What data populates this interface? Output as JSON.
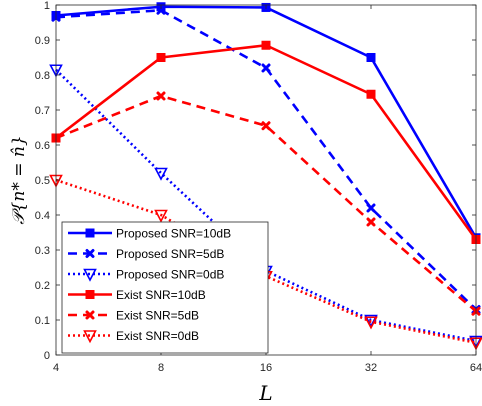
{
  "chart_data": {
    "type": "line",
    "x": [
      4,
      8,
      16,
      32,
      64
    ],
    "x_tick_labels": [
      "4",
      "8",
      "16",
      "32",
      "64"
    ],
    "x_scale": "log2",
    "xlabel": "L",
    "ylabel": "𝒫{n* = n̂}",
    "ylim": [
      0,
      1
    ],
    "y_ticks": [
      0,
      0.1,
      0.2,
      0.3,
      0.4,
      0.5,
      0.6,
      0.7,
      0.8,
      0.9,
      1
    ],
    "y_tick_labels": [
      "0",
      "0.1",
      "0.2",
      "0.3",
      "0.4",
      "0.5",
      "0.6",
      "0.7",
      "0.8",
      "0.9",
      "1"
    ],
    "grid": false,
    "legend_position": "bottom-left",
    "series": [
      {
        "name": "Proposed SNR=10dB",
        "values": [
          0.97,
          0.995,
          0.993,
          0.85,
          0.335
        ],
        "color": "#0000ff",
        "line": "solid",
        "marker": "square"
      },
      {
        "name": "Proposed SNR=5dB",
        "values": [
          0.965,
          0.985,
          0.82,
          0.42,
          0.13
        ],
        "color": "#0000ff",
        "line": "dashed",
        "marker": "x"
      },
      {
        "name": "Proposed SNR=0dB",
        "values": [
          0.815,
          0.52,
          0.24,
          0.1,
          0.04
        ],
        "color": "#0000ff",
        "line": "dotted",
        "marker": "triangle-down"
      },
      {
        "name": "Exist SNR=10dB",
        "values": [
          0.62,
          0.85,
          0.885,
          0.745,
          0.33
        ],
        "color": "#ff0000",
        "line": "solid",
        "marker": "square"
      },
      {
        "name": "Exist SNR=5dB",
        "values": [
          0.62,
          0.74,
          0.655,
          0.38,
          0.125
        ],
        "color": "#ff0000",
        "line": "dashed",
        "marker": "x"
      },
      {
        "name": "Exist SNR=0dB",
        "values": [
          0.5,
          0.4,
          0.225,
          0.095,
          0.035
        ],
        "color": "#ff0000",
        "line": "dotted",
        "marker": "triangle-down"
      }
    ]
  }
}
